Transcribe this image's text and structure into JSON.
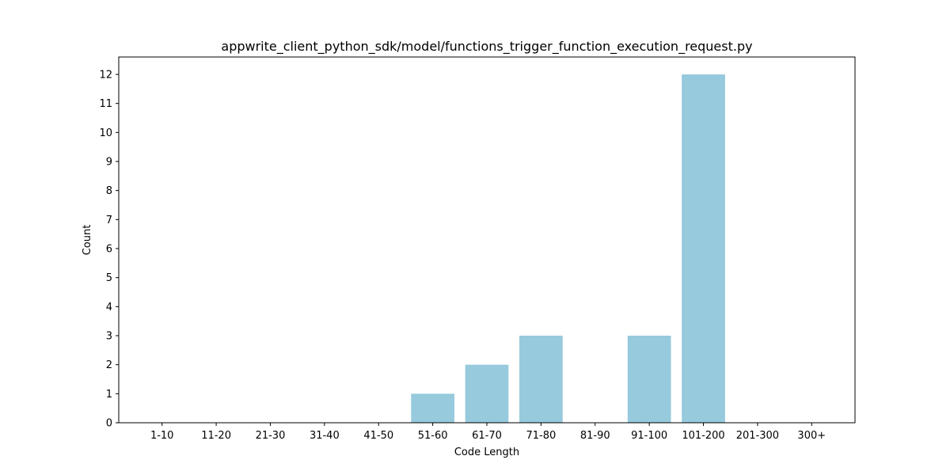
{
  "chart_data": {
    "type": "bar",
    "title": "appwrite_client_python_sdk/model/functions_trigger_function_execution_request.py",
    "xlabel": "Code Length",
    "ylabel": "Count",
    "categories": [
      "1-10",
      "11-20",
      "21-30",
      "31-40",
      "41-50",
      "51-60",
      "61-70",
      "71-80",
      "81-90",
      "91-100",
      "101-200",
      "201-300",
      "300+"
    ],
    "values": [
      0,
      0,
      0,
      0,
      0,
      1,
      2,
      3,
      0,
      3,
      12,
      0,
      0
    ],
    "ylim": [
      0,
      12.6
    ],
    "yticks": [
      "0",
      "1",
      "2",
      "3",
      "4",
      "5",
      "6",
      "7",
      "8",
      "9",
      "10",
      "11",
      "12"
    ],
    "grid": false,
    "bar_color": "#96cadc"
  }
}
